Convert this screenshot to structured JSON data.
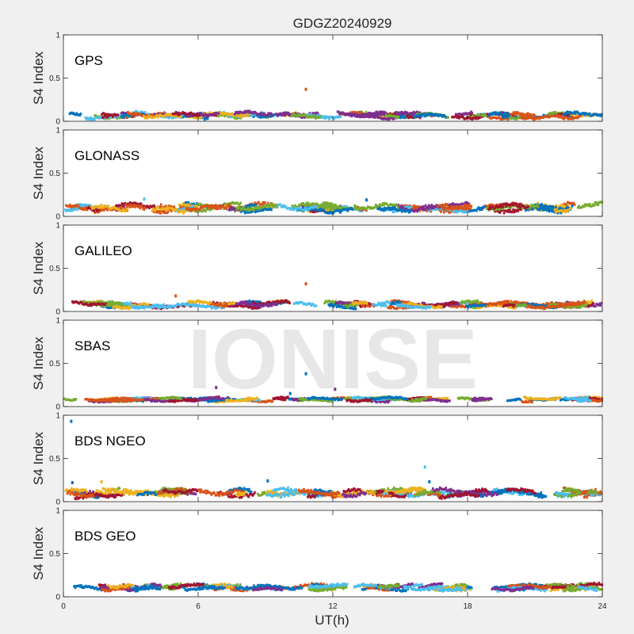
{
  "figure": {
    "title": "GDGZ20240929",
    "watermark": "IONISE"
  },
  "chart_data": {
    "type": "scatter",
    "title": "GDGZ20240929",
    "xlabel": "UT(h)",
    "ylabel": "S4 Index",
    "xlim": [
      0,
      24
    ],
    "ylim": [
      0,
      1
    ],
    "xticks": [
      "0",
      "6",
      "12",
      "18",
      "24"
    ],
    "yticks": [
      "0",
      "0.5",
      "1"
    ],
    "grid": false,
    "series_colors": [
      "#0072BD",
      "#D95319",
      "#EDB120",
      "#7E2F8E",
      "#77AC30",
      "#4DBEEE",
      "#A2142F"
    ],
    "panels": [
      {
        "name": "GPS",
        "baseline": 0.07,
        "spread": 0.03,
        "outliers": [
          {
            "x": 10.8,
            "y": 0.37,
            "color": "#D95319"
          }
        ]
      },
      {
        "name": "GLONASS",
        "baseline": 0.1,
        "spread": 0.04,
        "outliers": [
          {
            "x": 3.6,
            "y": 0.2,
            "color": "#4DBEEE"
          },
          {
            "x": 13.5,
            "y": 0.19,
            "color": "#0072BD"
          }
        ]
      },
      {
        "name": "GALILEO",
        "baseline": 0.08,
        "spread": 0.03,
        "outliers": [
          {
            "x": 10.8,
            "y": 0.32,
            "color": "#D95319"
          },
          {
            "x": 5.0,
            "y": 0.18,
            "color": "#D95319"
          }
        ]
      },
      {
        "name": "SBAS",
        "baseline": 0.08,
        "spread": 0.02,
        "outliers": [
          {
            "x": 10.8,
            "y": 0.38,
            "color": "#0072BD"
          },
          {
            "x": 6.8,
            "y": 0.22,
            "color": "#7E2F8E"
          },
          {
            "x": 12.1,
            "y": 0.2,
            "color": "#7E2F8E"
          },
          {
            "x": 10.1,
            "y": 0.15,
            "color": "#0072BD"
          }
        ]
      },
      {
        "name": "BDS NGEO",
        "baseline": 0.1,
        "spread": 0.04,
        "outliers": [
          {
            "x": 0.35,
            "y": 0.93,
            "color": "#0072BD"
          },
          {
            "x": 16.1,
            "y": 0.4,
            "color": "#4DBEEE"
          },
          {
            "x": 9.1,
            "y": 0.24,
            "color": "#0072BD"
          },
          {
            "x": 0.4,
            "y": 0.22,
            "color": "#0072BD"
          },
          {
            "x": 16.3,
            "y": 0.23,
            "color": "#0072BD"
          },
          {
            "x": 1.7,
            "y": 0.23,
            "color": "#EDB120"
          }
        ]
      },
      {
        "name": "BDS GEO",
        "baseline": 0.11,
        "spread": 0.03,
        "outliers": []
      }
    ]
  }
}
